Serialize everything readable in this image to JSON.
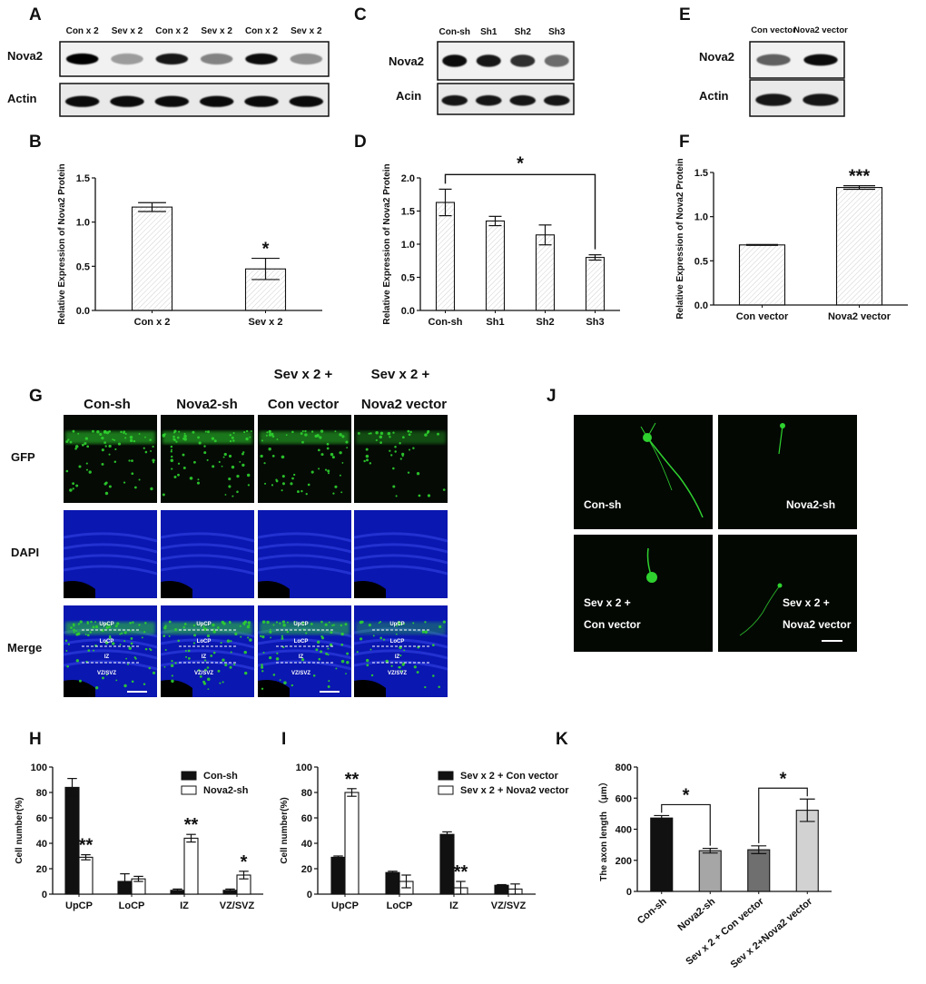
{
  "panels": {
    "A": {
      "label": "A",
      "lanes": [
        "Con x 2",
        "Sev x 2",
        "Con x 2",
        "Sev x 2",
        "Con x 2",
        "Sev x 2"
      ],
      "rows": [
        "Nova2",
        "Actin"
      ],
      "nova2_intensity": [
        1.0,
        0.35,
        0.9,
        0.45,
        0.95,
        0.4
      ],
      "actin_intensity": [
        0.95,
        0.95,
        0.95,
        0.95,
        0.95,
        0.95
      ]
    },
    "C": {
      "label": "C",
      "lanes": [
        "Con-sh",
        "Sh1",
        "Sh2",
        "Sh3"
      ],
      "rows": [
        "Nova2",
        "Acin"
      ],
      "nova2_intensity": [
        0.95,
        0.9,
        0.8,
        0.55
      ],
      "actin_intensity": [
        0.9,
        0.9,
        0.9,
        0.9
      ]
    },
    "E": {
      "label": "E",
      "lanes": [
        "Con vector",
        "Nova2 vector"
      ],
      "rows": [
        "Nova2",
        "Actin"
      ],
      "nova2_intensity": [
        0.6,
        0.95
      ],
      "actin_intensity": [
        0.9,
        0.9
      ]
    },
    "B": {
      "label": "B"
    },
    "D": {
      "label": "D"
    },
    "F": {
      "label": "F"
    },
    "G": {
      "label": "G",
      "columns": [
        "Con-sh",
        "Nova2-sh",
        "Sev x 2 +",
        "Con vector",
        "Sev x 2 +",
        "Nova2 vector"
      ],
      "rows": [
        "GFP",
        "DAPI",
        "Merge"
      ],
      "layers": [
        "UpCP",
        "LoCP",
        "IZ",
        "VZ/SVZ"
      ]
    },
    "J": {
      "label": "J",
      "captions": [
        "Con-sh",
        "Nova2-sh",
        "Sev x 2 +",
        "Con vector",
        "Sev x 2 +",
        "Nova2 vector"
      ]
    },
    "H": {
      "label": "H"
    },
    "I": {
      "label": "I"
    },
    "K": {
      "label": "K"
    }
  },
  "colors": {
    "green": "#2fd12f",
    "blue": "#1a2fd8",
    "dark": "#111111"
  },
  "chart_data": [
    {
      "id": "B",
      "type": "bar",
      "categories": [
        "Con x 2",
        "Sev x 2"
      ],
      "values": [
        1.17,
        0.47
      ],
      "errors": [
        0.05,
        0.12
      ],
      "ylabel": "Relative Expression of Nova2 Protein",
      "ylim": [
        0,
        1.5
      ],
      "yticks": [
        "0.0",
        "0.5",
        "1.0",
        "1.5"
      ],
      "significance": [
        {
          "category": 1,
          "text": "*"
        }
      ]
    },
    {
      "id": "D",
      "type": "bar",
      "categories": [
        "Con-sh",
        "Sh1",
        "Sh2",
        "Sh3"
      ],
      "values": [
        1.63,
        1.35,
        1.14,
        0.8
      ],
      "errors": [
        0.2,
        0.07,
        0.15,
        0.04
      ],
      "ylabel": "Relative Expression of Nova2 Protein",
      "ylim": [
        0,
        2.0
      ],
      "yticks": [
        "0.0",
        "0.5",
        "1.0",
        "1.5",
        "2.0"
      ],
      "bracket": {
        "from": 0,
        "to": 3,
        "y": 2.05,
        "text": "*"
      }
    },
    {
      "id": "F",
      "type": "bar",
      "categories": [
        "Con vector",
        "Nova2 vector"
      ],
      "values": [
        0.68,
        1.33
      ],
      "errors": [
        0.005,
        0.02
      ],
      "ylabel": "Relative Expression of Nova2 Protein",
      "ylim": [
        0,
        1.5
      ],
      "yticks": [
        "0.0",
        "0.5",
        "1.0",
        "1.5"
      ],
      "significance": [
        {
          "category": 1,
          "text": "***"
        }
      ]
    },
    {
      "id": "H",
      "type": "bar",
      "categories": [
        "UpCP",
        "LoCP",
        "IZ",
        "VZ/SVZ"
      ],
      "series": [
        {
          "name": "Con-sh",
          "values": [
            84,
            10,
            3,
            3
          ],
          "errors": [
            7,
            6,
            1,
            1
          ]
        },
        {
          "name": "Nova2-sh",
          "values": [
            29,
            12,
            44,
            15
          ],
          "errors": [
            2,
            2,
            3,
            3
          ]
        }
      ],
      "ylabel": "Cell number(%)",
      "ylim": [
        0,
        100
      ],
      "yticks": [
        "0",
        "20",
        "40",
        "60",
        "80",
        "100"
      ],
      "significance": [
        {
          "category": 0,
          "series": 1,
          "text": "**"
        },
        {
          "category": 2,
          "series": 1,
          "text": "**"
        },
        {
          "category": 3,
          "series": 1,
          "text": "*"
        }
      ]
    },
    {
      "id": "I",
      "type": "bar",
      "categories": [
        "UpCP",
        "LoCP",
        "IZ",
        "VZ/SVZ"
      ],
      "series": [
        {
          "name": "Sev x 2 + Con vector",
          "values": [
            29,
            17,
            47,
            7
          ],
          "errors": [
            1,
            1,
            2,
            0.5
          ]
        },
        {
          "name": "Sev x 2 + Nova2 vector",
          "values": [
            80,
            10,
            5,
            4
          ],
          "errors": [
            3,
            5,
            5,
            4
          ]
        }
      ],
      "ylabel": "Cell number(%)",
      "ylim": [
        0,
        100
      ],
      "yticks": [
        "0",
        "20",
        "40",
        "60",
        "80",
        "100"
      ],
      "significance": [
        {
          "category": 0,
          "series": 1,
          "text": "**"
        },
        {
          "category": 2,
          "series": 1,
          "text": "**"
        }
      ]
    },
    {
      "id": "K",
      "type": "bar",
      "categories": [
        "Con-sh",
        "Nova2-sh",
        "Sev x 2 + Con vector",
        "Sev x 2+Nova2 vector"
      ],
      "values": [
        472,
        262,
        268,
        522
      ],
      "errors": [
        16,
        15,
        25,
        72
      ],
      "colors": [
        "#111111",
        "#a6a6a6",
        "#6f6f6f",
        "#d2d2d2"
      ],
      "ylabel": "The axon length （μm）",
      "ylim": [
        0,
        800
      ],
      "yticks": [
        "0",
        "200",
        "400",
        "600",
        "800"
      ],
      "brackets": [
        {
          "from": 0,
          "to": 1,
          "text": "*"
        },
        {
          "from": 2,
          "to": 3,
          "text": "*"
        }
      ]
    }
  ]
}
